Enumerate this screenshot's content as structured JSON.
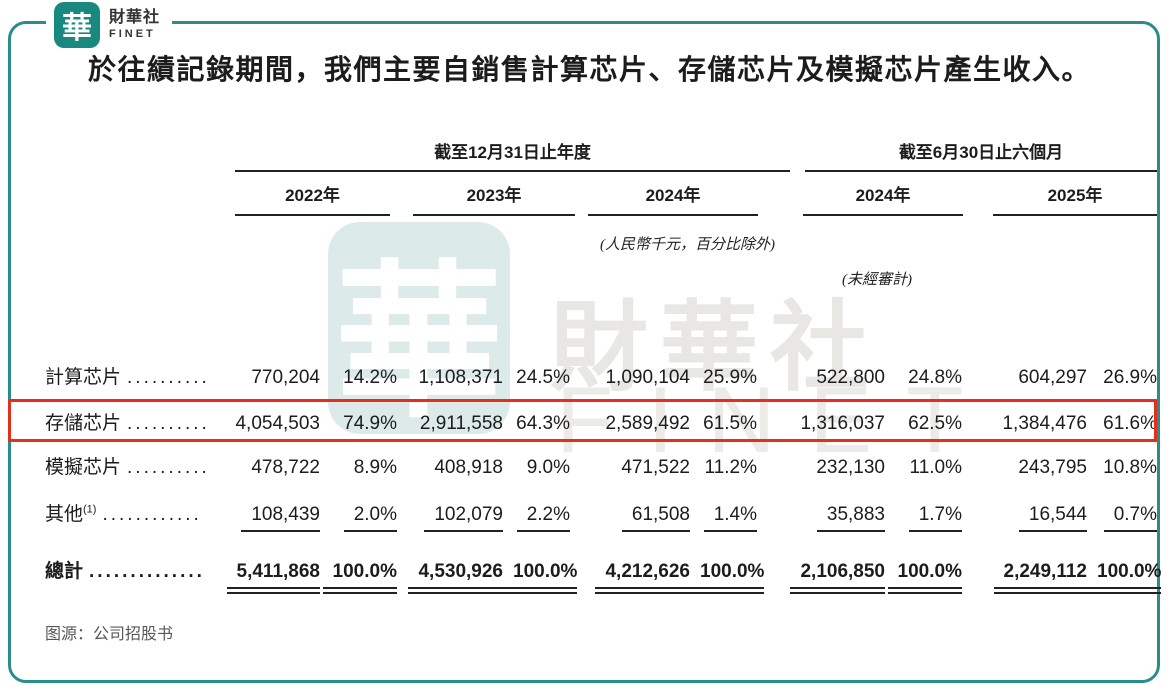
{
  "brand": {
    "logo_char": "華",
    "name_cn": "財華社",
    "name_en": "FINET"
  },
  "intro": "於往績記錄期間，我們主要自銷售計算芯片、存儲芯片及模擬芯片產生收入。",
  "watermark": {
    "seal_char": "華",
    "text_cn": "財華社",
    "text_en": "FINET"
  },
  "table": {
    "groups": [
      {
        "label": "截至12月31日止年度"
      },
      {
        "label": "截至6月30日止六個月"
      }
    ],
    "year_headers": [
      "2022年",
      "2023年",
      "2024年",
      "2024年",
      "2025年"
    ],
    "note_currency": "(人民幣千元，百分比除外)",
    "note_unaudited": "(未經審計)",
    "rows": [
      {
        "label": "計算芯片",
        "dots": "..........",
        "values": [
          "770,204",
          "14.2%",
          "1,108,371",
          "24.5%",
          "1,090,104",
          "25.9%",
          "522,800",
          "24.8%",
          "604,297",
          "26.9%"
        ]
      },
      {
        "label": "存儲芯片",
        "dots": "..........",
        "highlighted": true,
        "values": [
          "4,054,503",
          "74.9%",
          "2,911,558",
          "64.3%",
          "2,589,492",
          "61.5%",
          "1,316,037",
          "62.5%",
          "1,384,476",
          "61.6%"
        ]
      },
      {
        "label": "模擬芯片",
        "dots": "..........",
        "values": [
          "478,722",
          "8.9%",
          "408,918",
          "9.0%",
          "471,522",
          "11.2%",
          "232,130",
          "11.0%",
          "243,795",
          "10.8%"
        ]
      },
      {
        "label": "其他",
        "sup": "(1)",
        "dots": "............",
        "values": [
          "108,439",
          "2.0%",
          "102,079",
          "2.2%",
          "61,508",
          "1.4%",
          "35,883",
          "1.7%",
          "16,544",
          "0.7%"
        ]
      },
      {
        "label": "總計",
        "dots": "..............",
        "values": [
          "5,411,868",
          "100.0%",
          "4,530,926",
          "100.0%",
          "4,212,626",
          "100.0%",
          "2,106,850",
          "100.0%",
          "2,249,112",
          "100.0%"
        ]
      }
    ]
  },
  "footer": {
    "source": "图源：公司招股书"
  },
  "colors": {
    "teal": "#2b8d8b",
    "seal_teal": "#19897f",
    "highlight_red": "#e2301d",
    "text": "#1c1c1c",
    "footer_gray": "#575757"
  }
}
